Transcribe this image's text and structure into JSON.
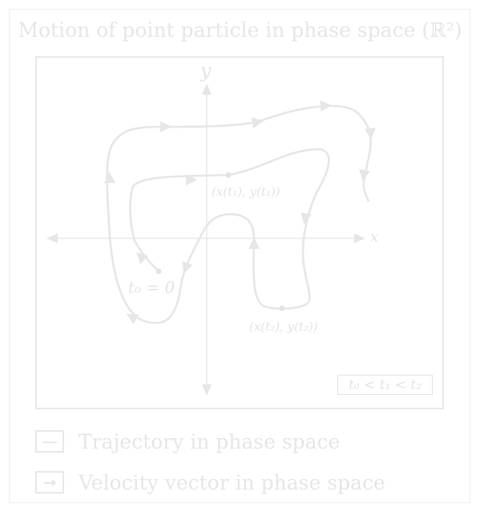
{
  "title": {
    "text": "Motion of point particle in phase space",
    "space": "(ℝ²)"
  },
  "axes": {
    "x_label": "x",
    "y_label": "y"
  },
  "points": {
    "t0": "t₀ = 0",
    "t1": "(x(t₁), y(t₁))",
    "t2": "(x(t₂), y(t₂))"
  },
  "condition": "t₀ < t₁ < t₂",
  "legend": [
    {
      "symbol": "—",
      "label": "Trajectory in phase space"
    },
    {
      "symbol": "→",
      "label": "Velocity vector in phase space"
    }
  ],
  "colors": {
    "stroke": "#e6e6e6",
    "border": "#e8e8e8",
    "text": "#e3e3e3",
    "background": "#ffffff"
  }
}
